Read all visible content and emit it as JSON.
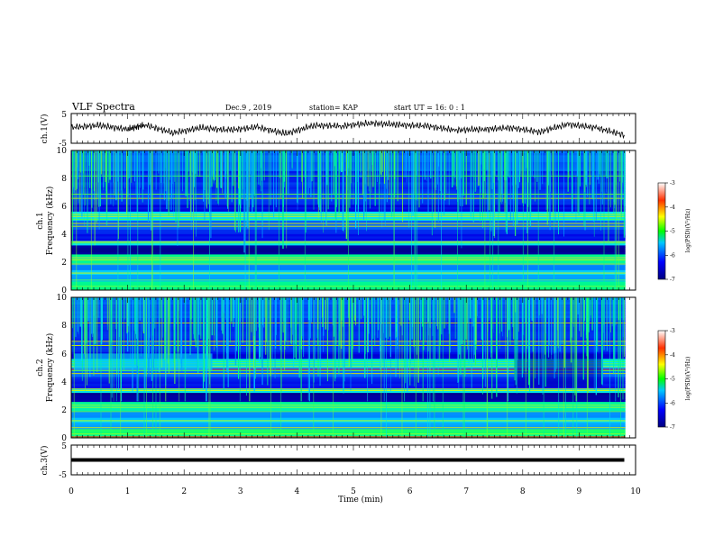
{
  "header": {
    "title": "VLF Spectra",
    "date": "Dec.9 , 2019",
    "station": "station= KAP",
    "start": "start UT = 16: 0 : 1"
  },
  "chart_data": {
    "type": "heatmap",
    "x": {
      "label": "Time (min)",
      "range": [
        0,
        10
      ],
      "ticks": [
        "0",
        "1",
        "2",
        "3",
        "4",
        "5",
        "6",
        "7",
        "8",
        "9",
        "10"
      ]
    },
    "panels": [
      {
        "id": "ch1-voltage",
        "type": "line",
        "ylabel": "ch.1(V)",
        "ylim": [
          -5,
          5
        ],
        "yticks": [
          "5",
          "-5"
        ],
        "series": [
          {
            "x": [
              0,
              0.5,
              1,
              1.3,
              1.8,
              2.3,
              2.8,
              3.3,
              3.8,
              4.3,
              4.8,
              5.3,
              5.8,
              6.3,
              6.8,
              7.3,
              7.8,
              8.3,
              8.8,
              9.3,
              9.8
            ],
            "y": [
              0.3,
              1,
              -0.3,
              1.2,
              -1.5,
              0.2,
              -0.6,
              0.4,
              -1.8,
              1,
              0.8,
              1.8,
              1.2,
              0.8,
              -0.6,
              -0.3,
              0.2,
              -1.2,
              1.4,
              0.2,
              -2.2
            ]
          }
        ]
      },
      {
        "id": "ch1-spectrogram",
        "type": "heatmap",
        "channel": "ch.1",
        "ylabel": "Frequency (kHz)",
        "ylim": [
          0,
          10
        ],
        "yticks": [
          "0",
          "2",
          "4",
          "6",
          "8",
          "10"
        ],
        "colorbar": {
          "label": "log(PSD)(V²/Hz)",
          "range": [
            -7,
            -3
          ],
          "ticks": [
            "-3",
            "-4",
            "-5",
            "-6",
            "-7"
          ]
        }
      },
      {
        "id": "ch2-spectrogram",
        "type": "heatmap",
        "channel": "ch.2",
        "ylabel": "Frequency (kHz)",
        "ylim": [
          0,
          10
        ],
        "yticks": [
          "0",
          "2",
          "4",
          "6",
          "8",
          "10"
        ],
        "colorbar": {
          "label": "log(PSD)(V²/Hz)",
          "range": [
            -7,
            -3
          ],
          "ticks": [
            "-3",
            "-4",
            "-5",
            "-6",
            "-7"
          ]
        }
      },
      {
        "id": "ch3-voltage",
        "type": "line",
        "ylabel": "ch.3(V)",
        "ylim": [
          -5,
          5
        ],
        "yticks": [
          "5",
          "-5"
        ],
        "series": [
          {
            "x": [
              0,
              9.8
            ],
            "y": [
              0,
              0
            ]
          }
        ]
      }
    ],
    "colors": {
      "low": "#00008f",
      "mid": "#00ffff",
      "high": "#ffff00",
      "max": "#ff0000"
    }
  }
}
